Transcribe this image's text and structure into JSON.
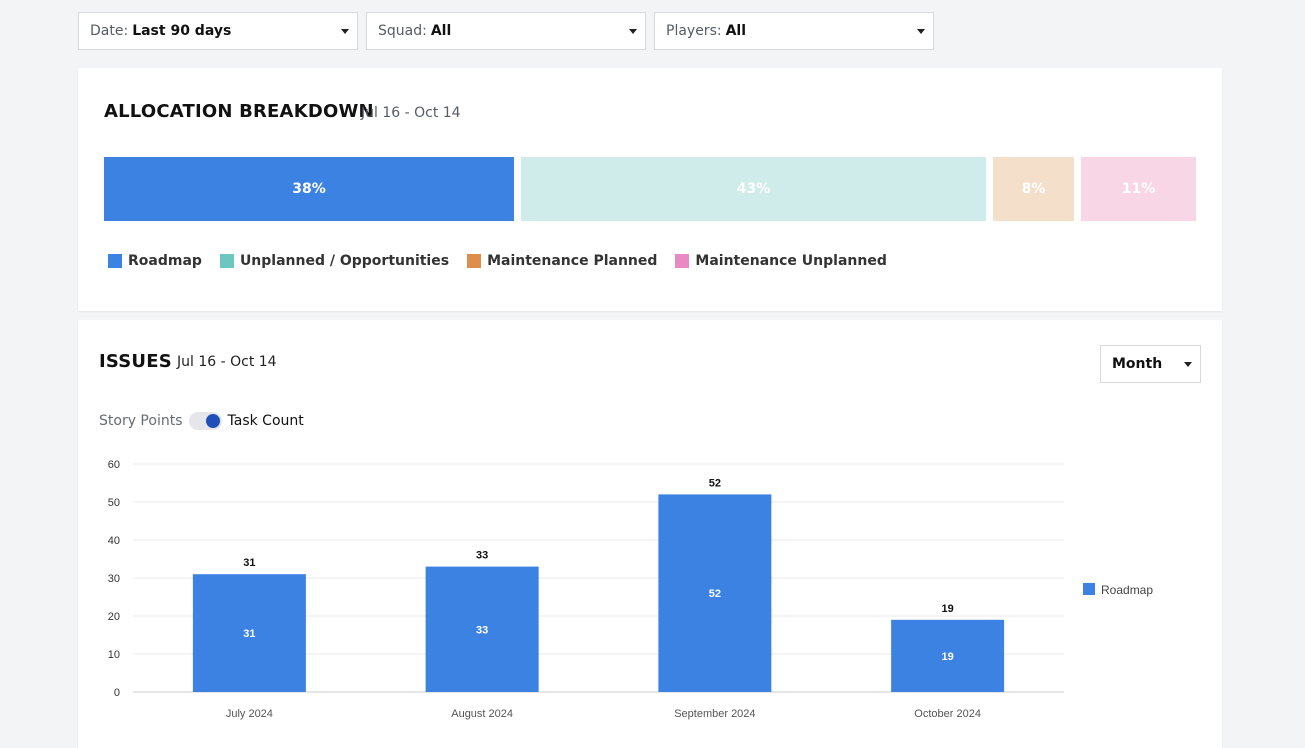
{
  "filters": [
    {
      "label": "Date:",
      "value": "Last 90 days"
    },
    {
      "label": "Squad:",
      "value": "All"
    },
    {
      "label": "Players:",
      "value": "All"
    }
  ],
  "allocation": {
    "title": "ALLOCATION BREAKDOWN",
    "range": "Jul 16 - Oct 14",
    "segments": [
      {
        "name": "Roadmap",
        "percent": 38,
        "label": "38%",
        "color": "#3b82e3"
      },
      {
        "name": "Unplanned / Opportunities",
        "percent": 43,
        "label": "43%",
        "color": "#cfecea"
      },
      {
        "name": "Maintenance Planned",
        "percent": 8,
        "label": "8%",
        "color": "#f3dfca"
      },
      {
        "name": "Maintenance Unplanned",
        "percent": 11,
        "label": "11%",
        "color": "#f8d6e6"
      }
    ],
    "legend": [
      {
        "label": "Roadmap",
        "color": "#3b82e3"
      },
      {
        "label": "Unplanned / Opportunities",
        "color": "#6cc7c1"
      },
      {
        "label": "Maintenance Planned",
        "color": "#dd8e4c"
      },
      {
        "label": "Maintenance Unplanned",
        "color": "#e98bc2"
      }
    ]
  },
  "issues": {
    "title": "ISSUES",
    "range": "Jul 16 - Oct 14",
    "period_select": "Month",
    "toggle": {
      "left": "Story Points",
      "right": "Task Count",
      "active": "Task Count"
    }
  },
  "chart_data": {
    "type": "bar",
    "categories": [
      "July 2024",
      "August 2024",
      "September 2024",
      "October 2024"
    ],
    "series": [
      {
        "name": "Roadmap",
        "values": [
          31,
          33,
          52,
          19
        ],
        "color": "#3b82e3"
      }
    ],
    "ylim": [
      0,
      60
    ],
    "yticks": [
      0,
      10,
      20,
      30,
      40,
      50,
      60
    ],
    "grid": true,
    "legend": "right"
  }
}
